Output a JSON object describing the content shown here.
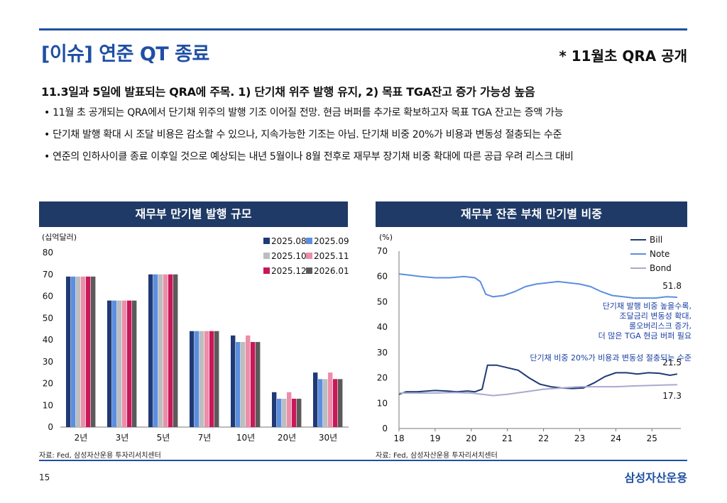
{
  "header": {
    "title": "[이슈] 연준 QT 종료",
    "note": "* 11월초 QRA 공개",
    "headline": "11.3일과 5일에 발표되는 QRA에 주목. 1) 단기채 위주 발행 유지, 2) 목표 TGA잔고 증가 가능성 높음",
    "bullets": [
      "• 11월 초 공개되는 QRA에서 단기채 위주의 발행 기조 이어질 전망. 현금 버퍼를 추가로 확보하고자 목표 TGA 잔고는 증액 가능",
      "• 단기채 발행 확대 시 조달 비용은 감소할 수 있으나, 지속가능한 기조는 아님. 단기채 비중 20%가 비용과 변동성 절충되는 수준",
      "• 연준의 인하사이클 종료 이후일 것으로 예상되는 내년 5월이나 8월 전후로 재무부 장기채 비중 확대에 따른 공급 우려 리스크 대비"
    ]
  },
  "footer": {
    "source_left": "자료: Fed, 삼성자산운용 투자리서치센터",
    "source_right": "자료: Fed, 삼성자산운용 투자리서치센터",
    "page": "15",
    "logo": "삼성자산운용"
  },
  "chart_data": [
    {
      "type": "bar",
      "title": "재무부 만기별 발행 규모",
      "ylabel": "(십억달러)",
      "xlabel": "",
      "ylim": [
        0,
        80
      ],
      "yticks": [
        0,
        10,
        20,
        30,
        40,
        50,
        60,
        70,
        80
      ],
      "grid": false,
      "legend": "top-right",
      "categories": [
        "2년",
        "3년",
        "5년",
        "7년",
        "10년",
        "20년",
        "30년"
      ],
      "series": [
        {
          "name": "2025.08",
          "color": "#1f3a75",
          "values": [
            69,
            58,
            70,
            44,
            42,
            16,
            25
          ]
        },
        {
          "name": "2025.09",
          "color": "#5b8ee0",
          "values": [
            69,
            58,
            70,
            44,
            39,
            13,
            22
          ]
        },
        {
          "name": "2025.10",
          "color": "#bdbdbd",
          "values": [
            69,
            58,
            70,
            44,
            39,
            13,
            22
          ]
        },
        {
          "name": "2025.11",
          "color": "#ec8ea9",
          "values": [
            69,
            58,
            70,
            44,
            42,
            16,
            25
          ]
        },
        {
          "name": "2025.12",
          "color": "#c8185a",
          "values": [
            69,
            58,
            70,
            44,
            39,
            13,
            22
          ]
        },
        {
          "name": "2026.01",
          "color": "#5a5a5a",
          "values": [
            69,
            58,
            70,
            44,
            39,
            13,
            22
          ]
        }
      ]
    },
    {
      "type": "line",
      "title": "재무부 잔존 부채 만기별 비중",
      "ylabel": "(%)",
      "xlabel": "",
      "ylim": [
        0,
        70
      ],
      "yticks": [
        0,
        10,
        20,
        30,
        40,
        50,
        60,
        70
      ],
      "xlim": [
        2018,
        2025.8
      ],
      "xticks": [
        2018,
        2019,
        2020,
        2021,
        2022,
        2023,
        2024,
        2025
      ],
      "xticklabels": [
        "18",
        "19",
        "20",
        "21",
        "22",
        "23",
        "24",
        "25"
      ],
      "grid": false,
      "legend": "top-right",
      "series": [
        {
          "name": "Bill",
          "color": "#1f3a75",
          "x": [
            2018.0,
            2018.2,
            2018.5,
            2018.8,
            2019.0,
            2019.3,
            2019.6,
            2019.9,
            2020.1,
            2020.3,
            2020.45,
            2020.7,
            2021.0,
            2021.3,
            2021.6,
            2021.9,
            2022.2,
            2022.5,
            2022.8,
            2023.1,
            2023.4,
            2023.7,
            2024.0,
            2024.3,
            2024.6,
            2024.9,
            2025.2,
            2025.5,
            2025.7
          ],
          "values": [
            13.5,
            14.5,
            14.5,
            14.8,
            15.0,
            14.8,
            14.5,
            14.8,
            14.5,
            15.5,
            25.0,
            25.0,
            24.0,
            23.0,
            20.0,
            17.5,
            16.5,
            16.0,
            15.8,
            16.0,
            18.0,
            20.5,
            22.0,
            22.0,
            21.5,
            22.0,
            21.8,
            21.0,
            21.5
          ]
        },
        {
          "name": "Note",
          "color": "#5b8ee0",
          "x": [
            2018.0,
            2018.3,
            2018.6,
            2019.0,
            2019.4,
            2019.8,
            2020.1,
            2020.25,
            2020.4,
            2020.6,
            2020.9,
            2021.2,
            2021.5,
            2021.8,
            2022.1,
            2022.4,
            2022.7,
            2023.0,
            2023.3,
            2023.6,
            2023.9,
            2024.2,
            2024.5,
            2024.8,
            2025.1,
            2025.4,
            2025.7
          ],
          "values": [
            61.0,
            60.5,
            60.0,
            59.5,
            59.5,
            60.0,
            59.5,
            58.0,
            53.0,
            52.0,
            52.5,
            54.0,
            56.0,
            57.0,
            57.5,
            58.0,
            57.5,
            57.0,
            56.0,
            54.0,
            52.5,
            52.0,
            51.5,
            51.5,
            51.5,
            52.0,
            51.8
          ]
        },
        {
          "name": "Bond",
          "color": "#a9a9d1",
          "x": [
            2018.0,
            2018.5,
            2019.0,
            2019.5,
            2020.0,
            2020.3,
            2020.6,
            2021.0,
            2021.5,
            2022.0,
            2022.5,
            2023.0,
            2023.5,
            2024.0,
            2024.5,
            2025.0,
            2025.4,
            2025.7
          ],
          "values": [
            14.0,
            14.0,
            14.0,
            14.2,
            14.0,
            13.5,
            13.0,
            13.5,
            14.5,
            15.5,
            16.0,
            16.5,
            16.5,
            16.5,
            16.8,
            17.0,
            17.2,
            17.3
          ]
        }
      ],
      "end_labels": [
        "51.8",
        "21.5",
        "17.3"
      ],
      "annotations": [
        "단기채 발행 비중 높을수록,",
        "조달금리 변동성 확대,",
        "롤오버리스크 증가,",
        "더 많은 TGA 현금 버퍼 필요",
        "단기채 비중 20%가 비용과 변동성 절충되는 수준"
      ]
    }
  ]
}
